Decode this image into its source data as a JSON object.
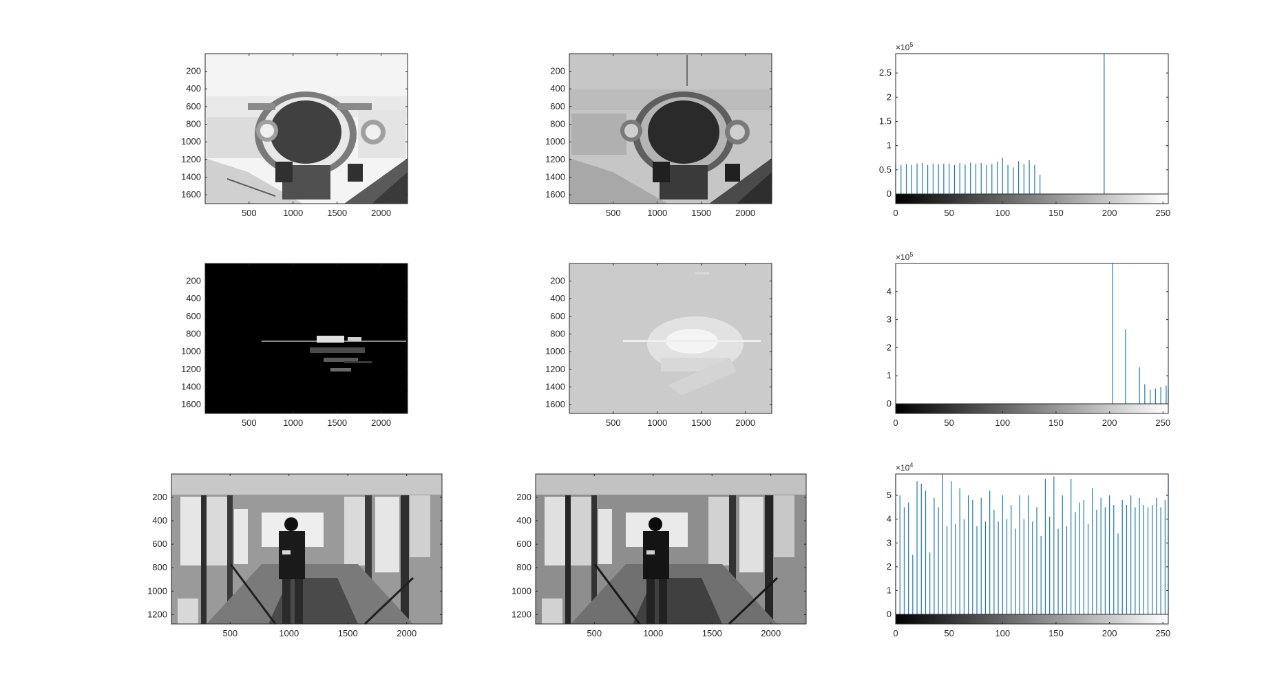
{
  "figure": {
    "background": "#ffffff",
    "axis_color": "#262626",
    "histogram_color": "#1f77b4"
  },
  "image_axes": {
    "rows": [
      {
        "x_ticks": [
          "500",
          "1000",
          "1500",
          "2000"
        ],
        "y_ticks": [
          "200",
          "400",
          "600",
          "800",
          "1000",
          "1200",
          "1400",
          "1600"
        ],
        "xlim": [
          1,
          2300
        ],
        "ylim": [
          1,
          1700
        ]
      },
      {
        "x_ticks": [
          "500",
          "1000",
          "1500",
          "2000"
        ],
        "y_ticks": [
          "200",
          "400",
          "600",
          "800",
          "1000",
          "1200",
          "1400",
          "1600"
        ],
        "xlim": [
          1,
          2300
        ],
        "ylim": [
          1,
          1700
        ]
      },
      {
        "x_ticks": [
          "500",
          "1000",
          "1500",
          "2000"
        ],
        "y_ticks": [
          "200",
          "400",
          "600",
          "800",
          "1000",
          "1200"
        ],
        "xlim": [
          1,
          2300
        ],
        "ylim": [
          1,
          1280
        ]
      }
    ],
    "panels": [
      {
        "row": 0,
        "col": 0,
        "content": "equalized-engine-photo",
        "tone": "light"
      },
      {
        "row": 0,
        "col": 1,
        "content": "engine-photo",
        "tone": "mid"
      },
      {
        "row": 1,
        "col": 0,
        "content": "night-harbor-photo",
        "tone": "dark"
      },
      {
        "row": 1,
        "col": 1,
        "content": "equalized-night-harbor-photo",
        "tone": "grey"
      },
      {
        "row": 2,
        "col": 0,
        "content": "stairway-photo",
        "tone": "normal"
      },
      {
        "row": 2,
        "col": 1,
        "content": "equalized-stairway-photo",
        "tone": "normal"
      }
    ]
  },
  "chart_data": [
    {
      "type": "bar",
      "style": "stem",
      "x_ticks": [
        "0",
        "50",
        "100",
        "150",
        "200",
        "250"
      ],
      "xlim": [
        0,
        255
      ],
      "y_ticks": [
        "0",
        "0.5",
        "1",
        "1.5",
        "2",
        "2.5"
      ],
      "y_tick_values": [
        0,
        0.5,
        1,
        1.5,
        2,
        2.5
      ],
      "exponent_base": "×10",
      "exponent_power": "5",
      "ylim": [
        0,
        2.9
      ],
      "colorbar": "grayscale 0–255",
      "x": [
        0,
        5,
        10,
        15,
        20,
        25,
        30,
        35,
        40,
        45,
        50,
        55,
        60,
        65,
        70,
        75,
        80,
        85,
        90,
        95,
        100,
        105,
        110,
        115,
        120,
        125,
        130,
        135,
        195
      ],
      "values": [
        0.65,
        0.6,
        0.62,
        0.6,
        0.63,
        0.64,
        0.6,
        0.63,
        0.62,
        0.63,
        0.63,
        0.6,
        0.64,
        0.61,
        0.65,
        0.62,
        0.64,
        0.6,
        0.62,
        0.67,
        0.75,
        0.6,
        0.55,
        0.68,
        0.62,
        0.7,
        0.6,
        0.4,
        2.9
      ]
    },
    {
      "type": "bar",
      "style": "stem",
      "x_ticks": [
        "0",
        "50",
        "100",
        "150",
        "200",
        "250"
      ],
      "xlim": [
        0,
        255
      ],
      "y_ticks": [
        "0",
        "1",
        "2",
        "3",
        "4"
      ],
      "y_tick_values": [
        0,
        1,
        2,
        3,
        4
      ],
      "exponent_base": "×10",
      "exponent_power": "5",
      "ylim": [
        0,
        5
      ],
      "colorbar": "grayscale 0–255",
      "x": [
        203,
        215,
        228,
        233,
        238,
        243,
        248,
        253,
        255
      ],
      "values": [
        5.0,
        2.65,
        1.3,
        0.7,
        0.5,
        0.55,
        0.6,
        0.65,
        0.55
      ]
    },
    {
      "type": "bar",
      "style": "stem",
      "x_ticks": [
        "0",
        "50",
        "100",
        "150",
        "200",
        "250"
      ],
      "xlim": [
        0,
        255
      ],
      "y_ticks": [
        "0",
        "1",
        "2",
        "3",
        "4",
        "5"
      ],
      "y_tick_values": [
        0,
        1,
        2,
        3,
        4,
        5
      ],
      "exponent_base": "×10",
      "exponent_power": "4",
      "ylim": [
        0,
        5.9
      ],
      "colorbar": "grayscale 0–255",
      "x": [
        0,
        4,
        8,
        12,
        16,
        20,
        24,
        28,
        32,
        36,
        40,
        44,
        48,
        52,
        56,
        60,
        64,
        68,
        72,
        76,
        80,
        84,
        88,
        92,
        96,
        100,
        104,
        108,
        112,
        116,
        120,
        124,
        128,
        132,
        136,
        140,
        144,
        148,
        152,
        156,
        160,
        164,
        168,
        172,
        176,
        180,
        184,
        188,
        192,
        196,
        200,
        204,
        208,
        212,
        216,
        220,
        224,
        228,
        232,
        236,
        240,
        244,
        248,
        252,
        255
      ],
      "values": [
        5.9,
        5.0,
        4.5,
        4.7,
        2.5,
        5.6,
        5.5,
        5.2,
        2.6,
        4.9,
        4.5,
        5.9,
        3.7,
        5.6,
        3.8,
        5.3,
        4.0,
        5.0,
        4.8,
        3.7,
        4.9,
        3.9,
        5.2,
        4.4,
        3.9,
        5.0,
        4.0,
        4.6,
        3.6,
        5.0,
        4.0,
        5.0,
        3.9,
        4.5,
        3.3,
        5.7,
        4.1,
        5.8,
        3.6,
        5.0,
        3.7,
        5.7,
        4.3,
        4.7,
        4.8,
        3.8,
        5.3,
        4.4,
        4.9,
        4.5,
        5.0,
        4.6,
        3.4,
        4.8,
        4.6,
        5.0,
        4.5,
        4.9,
        4.6,
        4.5,
        4.6,
        4.9,
        4.5,
        4.8,
        5.9
      ]
    }
  ]
}
